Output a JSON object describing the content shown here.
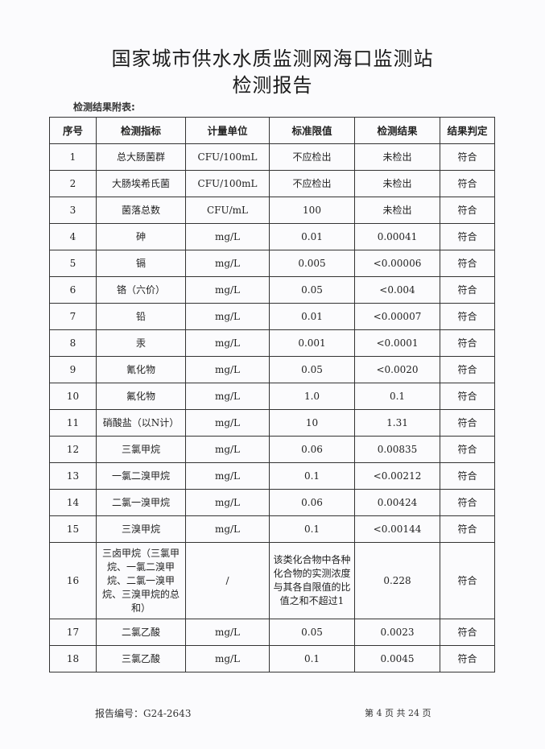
{
  "title_line1": "国家城市供水水质监测网海口监测站",
  "title_line2": "检测报告",
  "caption": "检测结果附表:",
  "columns": [
    "序号",
    "检测指标",
    "计量单位",
    "标准限值",
    "检测结果",
    "结果判定"
  ],
  "rows": [
    [
      "1",
      "总大肠菌群",
      "CFU/100mL",
      "不应检出",
      "未检出",
      "符合"
    ],
    [
      "2",
      "大肠埃希氏菌",
      "CFU/100mL",
      "不应检出",
      "未检出",
      "符合"
    ],
    [
      "3",
      "菌落总数",
      "CFU/mL",
      "100",
      "未检出",
      "符合"
    ],
    [
      "4",
      "砷",
      "mg/L",
      "0.01",
      "0.00041",
      "符合"
    ],
    [
      "5",
      "镉",
      "mg/L",
      "0.005",
      "<0.00006",
      "符合"
    ],
    [
      "6",
      "铬（六价）",
      "mg/L",
      "0.05",
      "<0.004",
      "符合"
    ],
    [
      "7",
      "铅",
      "mg/L",
      "0.01",
      "<0.00007",
      "符合"
    ],
    [
      "8",
      "汞",
      "mg/L",
      "0.001",
      "<0.0001",
      "符合"
    ],
    [
      "9",
      "氰化物",
      "mg/L",
      "0.05",
      "<0.0020",
      "符合"
    ],
    [
      "10",
      "氟化物",
      "mg/L",
      "1.0",
      "0.1",
      "符合"
    ],
    [
      "11",
      "硝酸盐（以N计）",
      "mg/L",
      "10",
      "1.31",
      "符合"
    ],
    [
      "12",
      "三氯甲烷",
      "mg/L",
      "0.06",
      "0.00835",
      "符合"
    ],
    [
      "13",
      "一氯二溴甲烷",
      "mg/L",
      "0.1",
      "<0.00212",
      "符合"
    ],
    [
      "14",
      "二氯一溴甲烷",
      "mg/L",
      "0.06",
      "0.00424",
      "符合"
    ],
    [
      "15",
      "三溴甲烷",
      "mg/L",
      "0.1",
      "<0.00144",
      "符合"
    ],
    [
      "16",
      "三卤甲烷（三氯甲烷、一氯二溴甲烷、二氯一溴甲烷、三溴甲烷的总和）",
      "/",
      "该类化合物中各种化合物的实测浓度与其各自限值的比值之和不超过1",
      "0.228",
      "符合"
    ],
    [
      "17",
      "二氯乙酸",
      "mg/L",
      "0.05",
      "0.0023",
      "符合"
    ],
    [
      "18",
      "三氯乙酸",
      "mg/L",
      "0.1",
      "0.0045",
      "符合"
    ]
  ],
  "footer": {
    "report_no": "报告编号：G24-2643",
    "page": "第 4 页  共 24 页"
  }
}
